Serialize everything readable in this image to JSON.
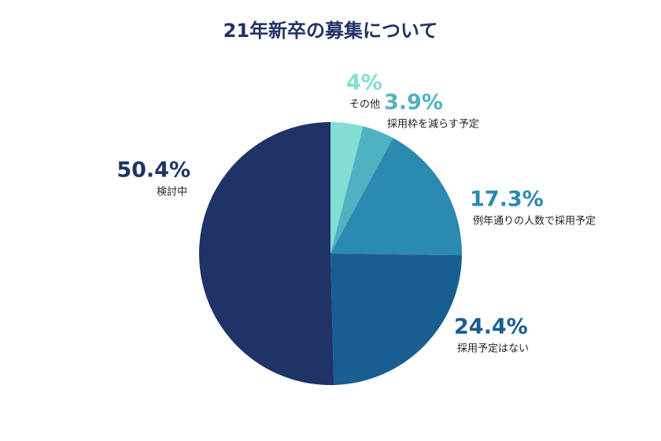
{
  "chart_data": {
    "type": "pie",
    "title": "21年新卒の募集について",
    "categories": [
      "その他",
      "採用枠を減らす予定",
      "例年通りの人数で採用予定",
      "採用予定はない",
      "検討中"
    ],
    "values": [
      4,
      3.9,
      17.3,
      24.4,
      50.4
    ],
    "value_labels": [
      "4%",
      "3.9%",
      "17.3%",
      "24.4%",
      "50.4%"
    ],
    "colors": [
      "#86ddd3",
      "#4fb2c2",
      "#2a8ab0",
      "#185e91",
      "#1f3366"
    ]
  }
}
